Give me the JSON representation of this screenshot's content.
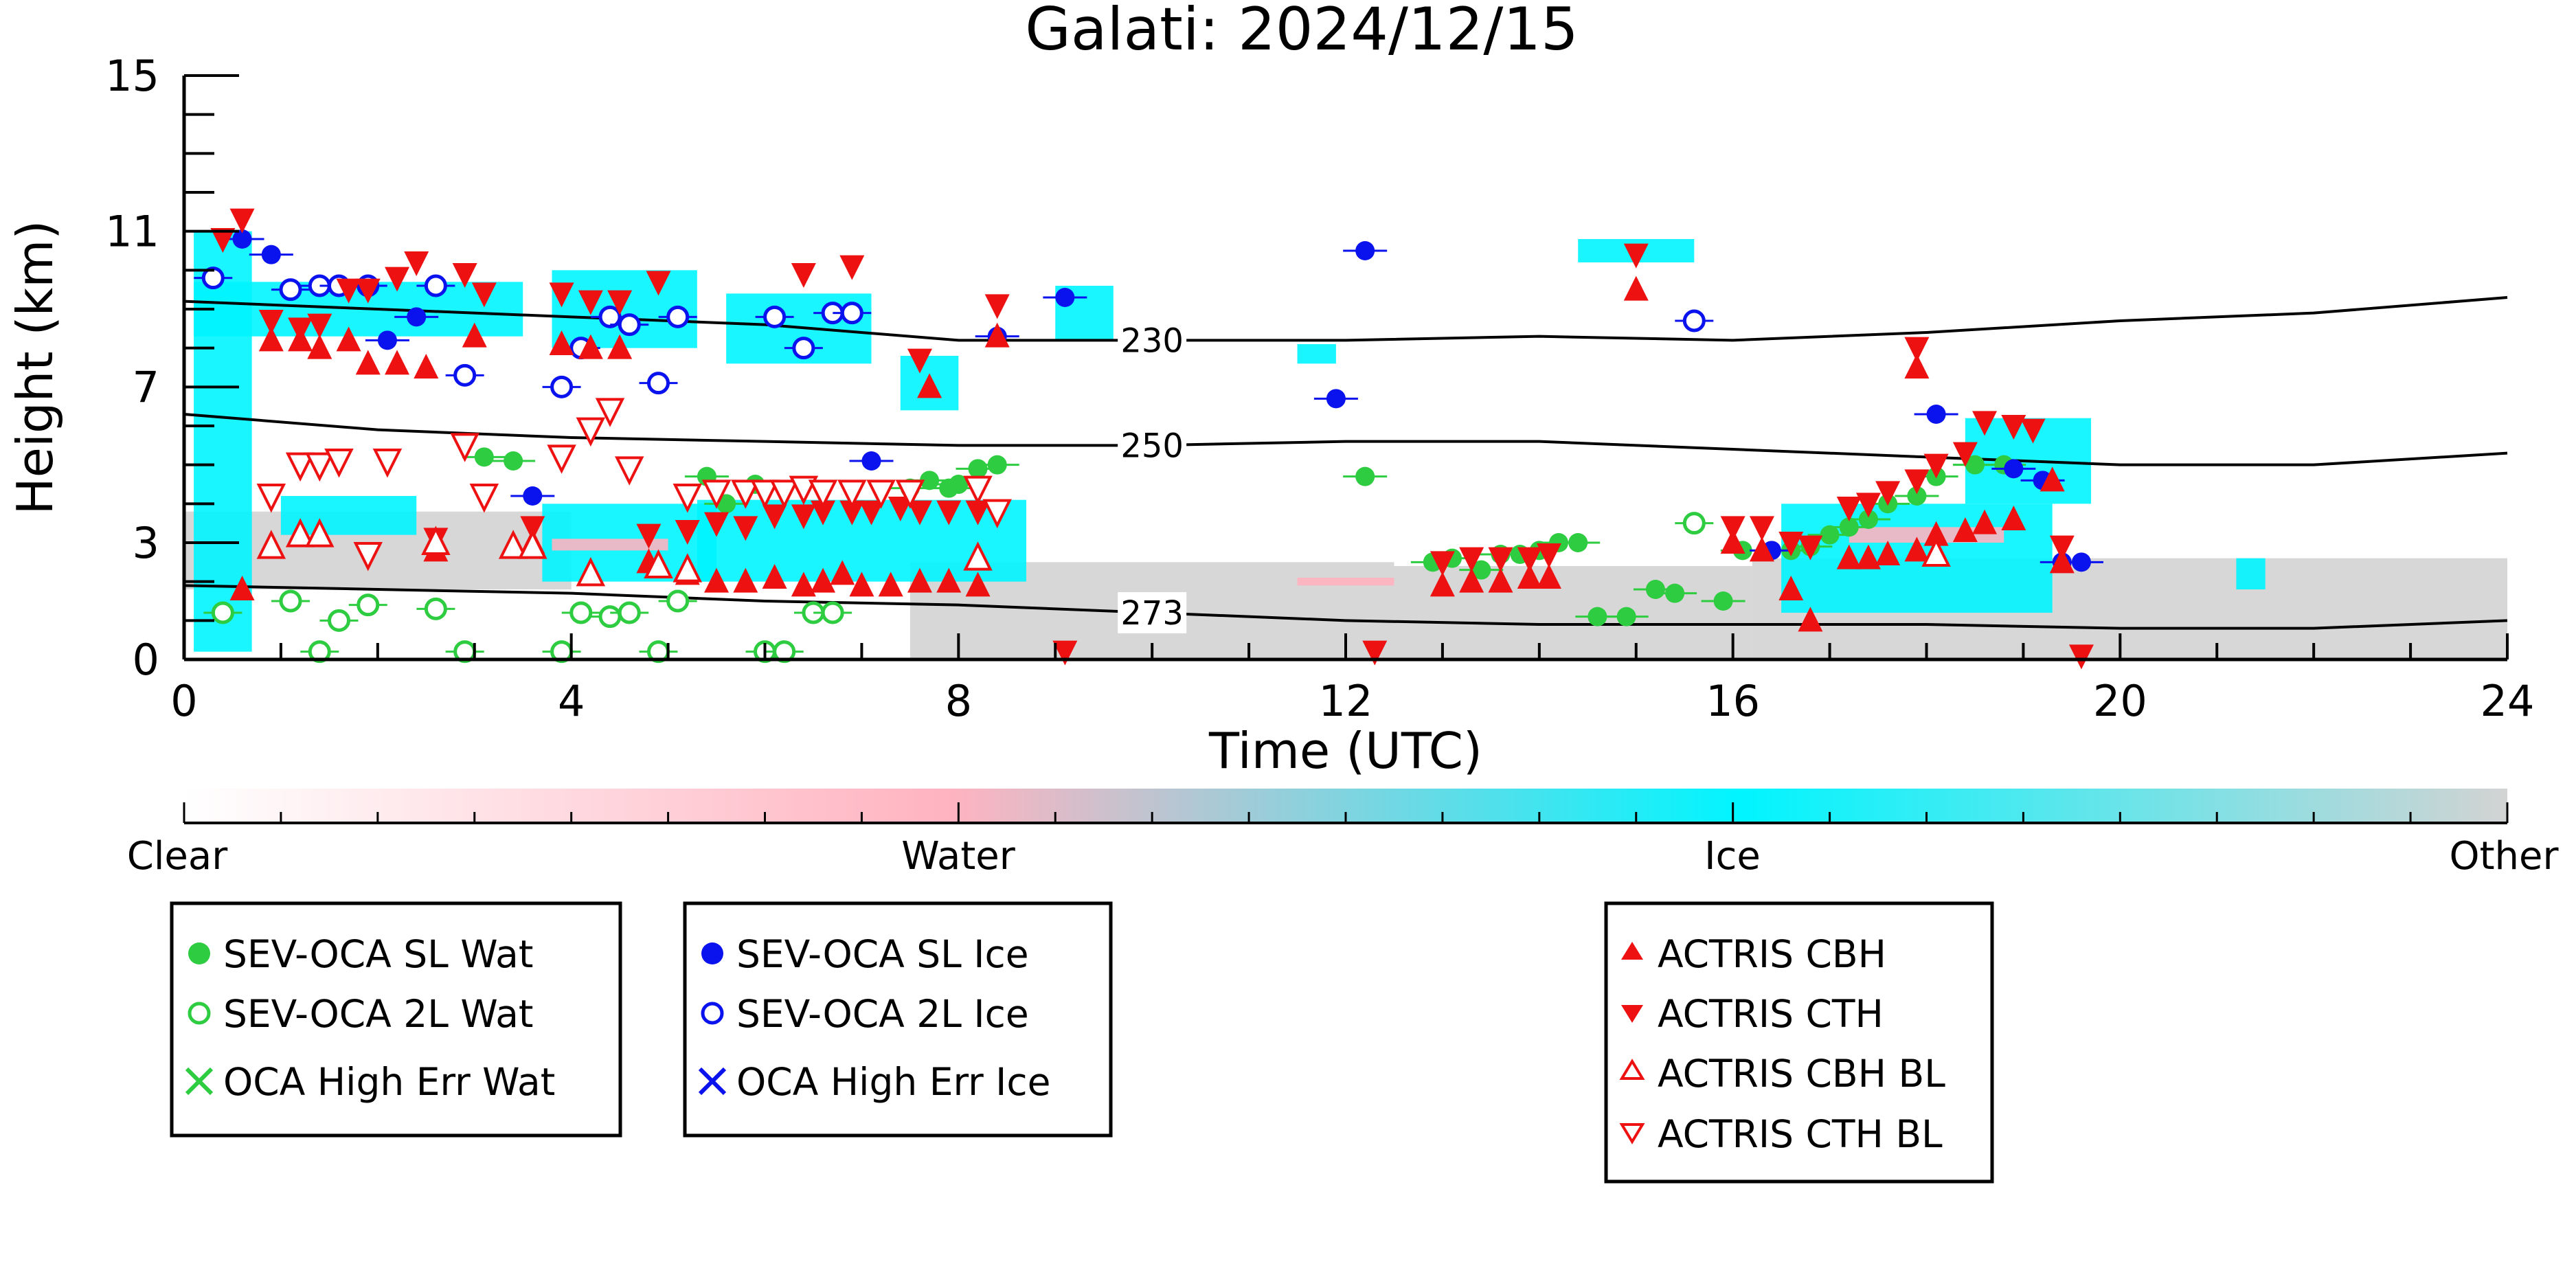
{
  "chart_data": {
    "type": "scatter",
    "title": "Galati: 2024/12/15",
    "xlabel": "Time (UTC)",
    "ylabel": "Height (km)",
    "xlim": [
      0,
      24
    ],
    "ylim": [
      0,
      15
    ],
    "xticks": [
      "0",
      "4",
      "8",
      "12",
      "16",
      "20",
      "24"
    ],
    "yticks": [
      "0",
      "3",
      "7",
      "11",
      "15"
    ],
    "colorbar": {
      "labels": [
        "Clear",
        "Water",
        "Ice",
        "Other"
      ],
      "colors": [
        "#ffffff",
        "#ffb3c0",
        "#00f5ff",
        "#d3d3d3"
      ]
    },
    "temperature_contours": [
      {
        "label": "230",
        "x": [
          0,
          2,
          4,
          6,
          8,
          10,
          12,
          14,
          16,
          18,
          20,
          22,
          24
        ],
        "y": [
          9.2,
          9.0,
          8.8,
          8.6,
          8.2,
          8.2,
          8.2,
          8.3,
          8.2,
          8.4,
          8.7,
          8.9,
          9.3
        ]
      },
      {
        "label": "250",
        "x": [
          0,
          2,
          4,
          6,
          8,
          10,
          12,
          14,
          16,
          18,
          20,
          22,
          24
        ],
        "y": [
          6.3,
          5.9,
          5.7,
          5.6,
          5.5,
          5.5,
          5.6,
          5.6,
          5.4,
          5.2,
          5.0,
          5.0,
          5.3
        ]
      },
      {
        "label": "273",
        "x": [
          0,
          2,
          4,
          6,
          8,
          10,
          12,
          14,
          16,
          18,
          20,
          22,
          24
        ],
        "y": [
          1.9,
          1.8,
          1.7,
          1.5,
          1.4,
          1.2,
          1.0,
          0.9,
          0.9,
          0.9,
          0.8,
          0.8,
          1.0
        ]
      }
    ],
    "series": [
      {
        "name": "SEV-OCA SL Wat",
        "marker": "filled-circle",
        "color": "#2ecc40",
        "points": [
          [
            3.1,
            5.2
          ],
          [
            3.4,
            5.1
          ],
          [
            5.4,
            4.7
          ],
          [
            5.6,
            4.0
          ],
          [
            5.9,
            4.5
          ],
          [
            7.5,
            4.4
          ],
          [
            7.7,
            4.6
          ],
          [
            7.9,
            4.4
          ],
          [
            8.0,
            4.5
          ],
          [
            8.2,
            4.9
          ],
          [
            8.4,
            5.0
          ],
          [
            12.2,
            4.7
          ],
          [
            12.9,
            2.5
          ],
          [
            13.1,
            2.6
          ],
          [
            13.4,
            2.3
          ],
          [
            13.6,
            2.7
          ],
          [
            13.8,
            2.7
          ],
          [
            14.0,
            2.8
          ],
          [
            14.2,
            3.0
          ],
          [
            14.4,
            3.0
          ],
          [
            14.6,
            1.1
          ],
          [
            14.9,
            1.1
          ],
          [
            15.2,
            1.8
          ],
          [
            15.4,
            1.7
          ],
          [
            15.9,
            1.5
          ],
          [
            16.1,
            2.8
          ],
          [
            16.6,
            2.8
          ],
          [
            16.8,
            2.9
          ],
          [
            17.0,
            3.2
          ],
          [
            17.2,
            3.4
          ],
          [
            17.4,
            3.6
          ],
          [
            17.6,
            4.0
          ],
          [
            17.9,
            4.2
          ],
          [
            18.1,
            4.7
          ],
          [
            18.5,
            5.0
          ],
          [
            18.8,
            5.0
          ]
        ]
      },
      {
        "name": "SEV-OCA 2L Wat",
        "marker": "open-circle",
        "color": "#2ecc40",
        "points": [
          [
            0.4,
            1.2
          ],
          [
            1.1,
            1.5
          ],
          [
            1.4,
            0.2
          ],
          [
            1.6,
            1.0
          ],
          [
            1.9,
            1.4
          ],
          [
            2.6,
            1.3
          ],
          [
            2.9,
            0.2
          ],
          [
            3.9,
            0.2
          ],
          [
            4.1,
            1.2
          ],
          [
            4.4,
            1.1
          ],
          [
            4.6,
            1.2
          ],
          [
            4.9,
            0.2
          ],
          [
            5.1,
            1.5
          ],
          [
            6.0,
            0.2
          ],
          [
            6.2,
            0.2
          ],
          [
            6.5,
            1.2
          ],
          [
            6.7,
            1.2
          ],
          [
            15.6,
            3.5
          ]
        ]
      },
      {
        "name": "SEV-OCA SL Ice",
        "marker": "filled-circle",
        "color": "#0a12ee",
        "points": [
          [
            0.6,
            10.8
          ],
          [
            0.9,
            10.4
          ],
          [
            2.1,
            8.2
          ],
          [
            2.4,
            8.8
          ],
          [
            3.6,
            4.2
          ],
          [
            7.1,
            5.1
          ],
          [
            8.4,
            8.3
          ],
          [
            9.1,
            9.3
          ],
          [
            11.9,
            6.7
          ],
          [
            12.2,
            10.5
          ],
          [
            16.4,
            2.8
          ],
          [
            18.1,
            6.3
          ],
          [
            18.9,
            4.9
          ],
          [
            19.2,
            4.6
          ],
          [
            19.4,
            2.5
          ],
          [
            19.6,
            2.5
          ]
        ]
      },
      {
        "name": "SEV-OCA 2L Ice",
        "marker": "open-circle",
        "color": "#0a12ee",
        "points": [
          [
            0.3,
            9.8
          ],
          [
            1.1,
            9.5
          ],
          [
            1.4,
            9.6
          ],
          [
            1.6,
            9.6
          ],
          [
            1.9,
            9.6
          ],
          [
            2.6,
            9.6
          ],
          [
            2.9,
            7.3
          ],
          [
            3.9,
            7.0
          ],
          [
            4.1,
            8.0
          ],
          [
            4.4,
            8.8
          ],
          [
            4.6,
            8.6
          ],
          [
            4.9,
            7.1
          ],
          [
            5.1,
            8.8
          ],
          [
            6.1,
            8.8
          ],
          [
            6.4,
            8.0
          ],
          [
            6.7,
            8.9
          ],
          [
            6.9,
            8.9
          ],
          [
            15.6,
            8.7
          ]
        ]
      },
      {
        "name": "OCA High Err Wat",
        "marker": "x",
        "color": "#2ecc40",
        "points": []
      },
      {
        "name": "OCA High Err Ice",
        "marker": "x",
        "color": "#0a12ee",
        "points": []
      },
      {
        "name": "ACTRIS CBH",
        "marker": "triangle-up",
        "color": "#ee1111",
        "points": [
          [
            0.6,
            1.8
          ],
          [
            0.9,
            8.2
          ],
          [
            1.2,
            8.2
          ],
          [
            1.4,
            8.0
          ],
          [
            1.7,
            8.2
          ],
          [
            1.9,
            7.6
          ],
          [
            2.2,
            7.6
          ],
          [
            2.5,
            7.5
          ],
          [
            2.6,
            2.8
          ],
          [
            3.0,
            8.3
          ],
          [
            3.6,
            3.0
          ],
          [
            3.9,
            8.1
          ],
          [
            4.2,
            8.0
          ],
          [
            4.5,
            8.0
          ],
          [
            4.8,
            2.5
          ],
          [
            5.2,
            2.2
          ],
          [
            5.5,
            2.0
          ],
          [
            5.8,
            2.0
          ],
          [
            6.1,
            2.1
          ],
          [
            6.4,
            1.9
          ],
          [
            6.6,
            2.0
          ],
          [
            6.8,
            2.2
          ],
          [
            7.0,
            1.9
          ],
          [
            7.3,
            1.9
          ],
          [
            7.6,
            2.0
          ],
          [
            7.9,
            2.0
          ],
          [
            8.2,
            1.9
          ],
          [
            7.7,
            7.0
          ],
          [
            8.4,
            8.3
          ],
          [
            15.0,
            9.5
          ],
          [
            16.0,
            3.0
          ],
          [
            16.3,
            2.8
          ],
          [
            16.6,
            1.8
          ],
          [
            16.8,
            1.0
          ],
          [
            17.2,
            2.6
          ],
          [
            17.4,
            2.6
          ],
          [
            17.6,
            2.7
          ],
          [
            17.9,
            2.8
          ],
          [
            18.1,
            3.2
          ],
          [
            18.4,
            3.3
          ],
          [
            18.6,
            3.5
          ],
          [
            18.9,
            3.6
          ],
          [
            19.3,
            4.6
          ],
          [
            13.0,
            1.9
          ],
          [
            13.3,
            2.0
          ],
          [
            13.6,
            2.0
          ],
          [
            13.9,
            2.1
          ],
          [
            14.1,
            2.1
          ],
          [
            17.9,
            7.5
          ],
          [
            19.4,
            2.5
          ]
        ]
      },
      {
        "name": "ACTRIS CTH",
        "marker": "triangle-down",
        "color": "#ee1111",
        "points": [
          [
            0.4,
            10.8
          ],
          [
            0.6,
            11.3
          ],
          [
            0.9,
            8.7
          ],
          [
            1.2,
            8.5
          ],
          [
            1.4,
            8.6
          ],
          [
            1.7,
            9.5
          ],
          [
            1.9,
            9.5
          ],
          [
            2.2,
            9.8
          ],
          [
            2.4,
            10.2
          ],
          [
            2.6,
            3.1
          ],
          [
            2.9,
            9.9
          ],
          [
            3.1,
            9.4
          ],
          [
            3.6,
            3.4
          ],
          [
            3.9,
            9.4
          ],
          [
            4.2,
            9.2
          ],
          [
            4.5,
            9.2
          ],
          [
            4.9,
            9.7
          ],
          [
            4.8,
            3.2
          ],
          [
            5.2,
            3.3
          ],
          [
            5.5,
            3.5
          ],
          [
            5.8,
            3.4
          ],
          [
            6.1,
            3.7
          ],
          [
            6.4,
            3.7
          ],
          [
            6.6,
            3.8
          ],
          [
            6.9,
            3.8
          ],
          [
            7.1,
            3.8
          ],
          [
            7.4,
            3.9
          ],
          [
            7.6,
            3.8
          ],
          [
            7.9,
            3.8
          ],
          [
            8.2,
            3.8
          ],
          [
            6.4,
            9.9
          ],
          [
            6.9,
            10.1
          ],
          [
            7.6,
            7.7
          ],
          [
            8.4,
            9.1
          ],
          [
            15.0,
            10.4
          ],
          [
            16.0,
            3.4
          ],
          [
            16.3,
            3.4
          ],
          [
            16.6,
            3.0
          ],
          [
            16.8,
            2.9
          ],
          [
            17.2,
            3.9
          ],
          [
            17.4,
            4.0
          ],
          [
            17.6,
            4.3
          ],
          [
            17.9,
            4.6
          ],
          [
            18.1,
            5.0
          ],
          [
            18.4,
            5.3
          ],
          [
            18.6,
            6.1
          ],
          [
            18.9,
            6.0
          ],
          [
            19.1,
            5.9
          ],
          [
            13.0,
            2.5
          ],
          [
            13.3,
            2.6
          ],
          [
            13.6,
            2.6
          ],
          [
            13.9,
            2.6
          ],
          [
            14.1,
            2.7
          ],
          [
            17.9,
            8.0
          ],
          [
            19.4,
            2.9
          ],
          [
            9.1,
            0.2
          ],
          [
            12.3,
            0.2
          ],
          [
            19.6,
            0.1
          ]
        ]
      },
      {
        "name": "ACTRIS CBH BL",
        "marker": "open-triangle-up",
        "color": "#ee1111",
        "points": [
          [
            0.9,
            2.9
          ],
          [
            1.2,
            3.2
          ],
          [
            1.4,
            3.2
          ],
          [
            2.6,
            3.0
          ],
          [
            3.4,
            2.9
          ],
          [
            3.6,
            2.9
          ],
          [
            4.2,
            2.2
          ],
          [
            4.9,
            2.4
          ],
          [
            5.2,
            2.3
          ],
          [
            8.2,
            2.6
          ],
          [
            18.1,
            2.7
          ]
        ]
      },
      {
        "name": "ACTRIS CTH BL",
        "marker": "open-triangle-down",
        "color": "#ee1111",
        "points": [
          [
            0.9,
            4.2
          ],
          [
            1.2,
            5.0
          ],
          [
            1.4,
            5.0
          ],
          [
            1.6,
            5.1
          ],
          [
            1.9,
            2.7
          ],
          [
            2.1,
            5.1
          ],
          [
            2.9,
            5.5
          ],
          [
            3.1,
            4.2
          ],
          [
            3.9,
            5.2
          ],
          [
            4.2,
            5.9
          ],
          [
            4.4,
            6.4
          ],
          [
            4.6,
            4.9
          ],
          [
            5.2,
            4.2
          ],
          [
            5.5,
            4.3
          ],
          [
            5.8,
            4.3
          ],
          [
            6.0,
            4.3
          ],
          [
            6.2,
            4.3
          ],
          [
            6.4,
            4.4
          ],
          [
            6.6,
            4.3
          ],
          [
            6.9,
            4.3
          ],
          [
            7.2,
            4.3
          ],
          [
            7.5,
            4.3
          ],
          [
            8.2,
            4.4
          ],
          [
            8.4,
            3.8
          ]
        ]
      }
    ],
    "legend": {
      "water": [
        "SEV-OCA SL Wat",
        "SEV-OCA 2L Wat",
        "OCA High Err Wat"
      ],
      "ice": [
        "SEV-OCA SL Ice",
        "SEV-OCA 2L Ice",
        "OCA High Err Ice"
      ],
      "actris": [
        "ACTRIS CBH",
        "ACTRIS CTH",
        "ACTRIS CBH BL",
        "ACTRIS CTH BL"
      ],
      "placement": "below"
    },
    "grid": false
  }
}
